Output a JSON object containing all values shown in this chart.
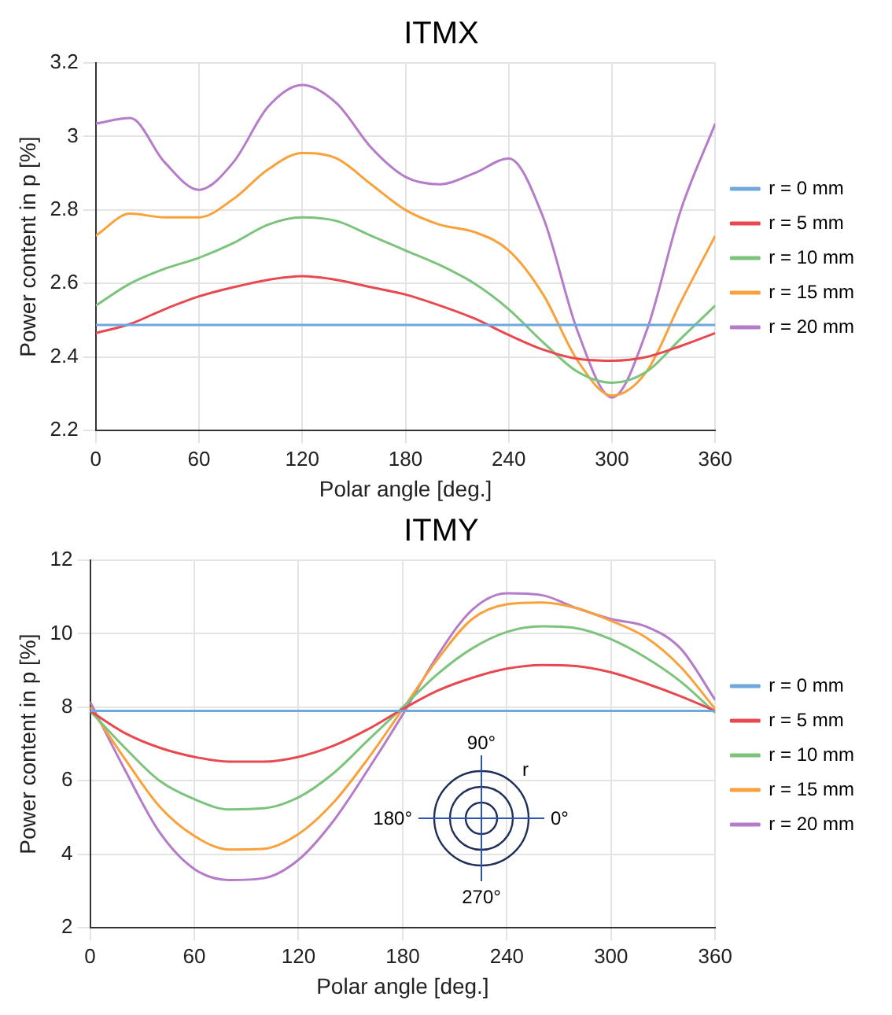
{
  "chart_data": [
    {
      "type": "line",
      "title": "ITMX",
      "xlabel": "Polar angle [deg.]",
      "ylabel": "Power content in p [%]",
      "x": [
        0,
        20,
        40,
        60,
        80,
        100,
        120,
        140,
        160,
        180,
        200,
        220,
        240,
        260,
        280,
        300,
        320,
        340,
        360
      ],
      "xlim": [
        0,
        360
      ],
      "xticks": [
        0,
        60,
        120,
        180,
        240,
        300,
        360
      ],
      "ylim": [
        2.2,
        3.2
      ],
      "yticks": [
        2.2,
        2.4,
        2.6,
        2.8,
        3,
        3.2
      ],
      "grid": true,
      "legend": "right",
      "marker": "none",
      "line_style": "solid",
      "series": [
        {
          "name": "r = 0 mm",
          "color": "#6fa8dc",
          "values": [
            2.487,
            2.487,
            2.487,
            2.487,
            2.487,
            2.487,
            2.487,
            2.487,
            2.487,
            2.487,
            2.487,
            2.487,
            2.487,
            2.487,
            2.487,
            2.487,
            2.487,
            2.487,
            2.487
          ]
        },
        {
          "name": "r = 5 mm",
          "color": "#e8484f",
          "values": [
            2.465,
            2.49,
            2.53,
            2.565,
            2.59,
            2.61,
            2.62,
            2.61,
            2.59,
            2.57,
            2.54,
            2.505,
            2.46,
            2.42,
            2.395,
            2.39,
            2.4,
            2.43,
            2.465
          ]
        },
        {
          "name": "r = 10 mm",
          "color": "#7cc47c",
          "values": [
            2.54,
            2.6,
            2.64,
            2.67,
            2.71,
            2.76,
            2.78,
            2.77,
            2.73,
            2.69,
            2.65,
            2.6,
            2.53,
            2.44,
            2.36,
            2.33,
            2.36,
            2.45,
            2.54
          ]
        },
        {
          "name": "r = 15 mm",
          "color": "#f9a13a",
          "values": [
            2.73,
            2.79,
            2.78,
            2.78,
            2.83,
            2.91,
            2.955,
            2.94,
            2.87,
            2.8,
            2.76,
            2.74,
            2.69,
            2.57,
            2.39,
            2.295,
            2.36,
            2.55,
            2.73
          ]
        },
        {
          "name": "r = 20 mm",
          "color": "#b57cc9",
          "values": [
            3.035,
            3.05,
            2.93,
            2.855,
            2.93,
            3.08,
            3.14,
            3.09,
            2.97,
            2.89,
            2.87,
            2.9,
            2.94,
            2.78,
            2.47,
            2.29,
            2.47,
            2.8,
            3.035
          ]
        }
      ]
    },
    {
      "type": "line",
      "title": "ITMY",
      "xlabel": "Polar angle [deg.]",
      "ylabel": "Power content in p [%]",
      "x": [
        0,
        20,
        40,
        60,
        80,
        100,
        120,
        140,
        160,
        180,
        200,
        220,
        240,
        260,
        280,
        300,
        320,
        340,
        360
      ],
      "xlim": [
        0,
        360
      ],
      "xticks": [
        0,
        60,
        120,
        180,
        240,
        300,
        360
      ],
      "ylim": [
        2,
        12
      ],
      "yticks": [
        2,
        4,
        6,
        8,
        10,
        12
      ],
      "grid": true,
      "legend": "right",
      "marker": "none",
      "line_style": "solid",
      "annotations": [
        "90°",
        "180°",
        "0°",
        "270°",
        "r"
      ],
      "series": [
        {
          "name": "r = 0 mm",
          "color": "#6fa8dc",
          "values": [
            7.9,
            7.9,
            7.9,
            7.9,
            7.9,
            7.9,
            7.9,
            7.9,
            7.9,
            7.9,
            7.9,
            7.9,
            7.9,
            7.9,
            7.9,
            7.9,
            7.9,
            7.9,
            7.9
          ]
        },
        {
          "name": "r = 5 mm",
          "color": "#e8484f",
          "values": [
            7.9,
            7.3,
            6.9,
            6.65,
            6.52,
            6.52,
            6.65,
            6.95,
            7.4,
            7.95,
            8.45,
            8.8,
            9.05,
            9.15,
            9.12,
            8.95,
            8.65,
            8.3,
            7.9
          ]
        },
        {
          "name": "r = 10 mm",
          "color": "#7cc47c",
          "values": [
            7.9,
            6.9,
            6,
            5.5,
            5.22,
            5.25,
            5.55,
            6.2,
            7.1,
            8,
            8.9,
            9.6,
            10.05,
            10.2,
            10.15,
            9.85,
            9.35,
            8.7,
            7.85
          ]
        },
        {
          "name": "r = 15 mm",
          "color": "#f9a13a",
          "values": [
            8,
            6.6,
            5.3,
            4.5,
            4.13,
            4.15,
            4.55,
            5.4,
            6.6,
            7.95,
            9.3,
            10.4,
            10.8,
            10.85,
            10.7,
            10.35,
            9.9,
            9.1,
            7.95
          ]
        },
        {
          "name": "r = 20 mm",
          "color": "#b57cc9",
          "values": [
            8.15,
            6.3,
            4.6,
            3.6,
            3.3,
            3.35,
            3.85,
            4.9,
            6.3,
            7.8,
            9.4,
            10.65,
            11.1,
            11.05,
            10.7,
            10.4,
            10.2,
            9.6,
            8.2
          ]
        }
      ]
    }
  ]
}
